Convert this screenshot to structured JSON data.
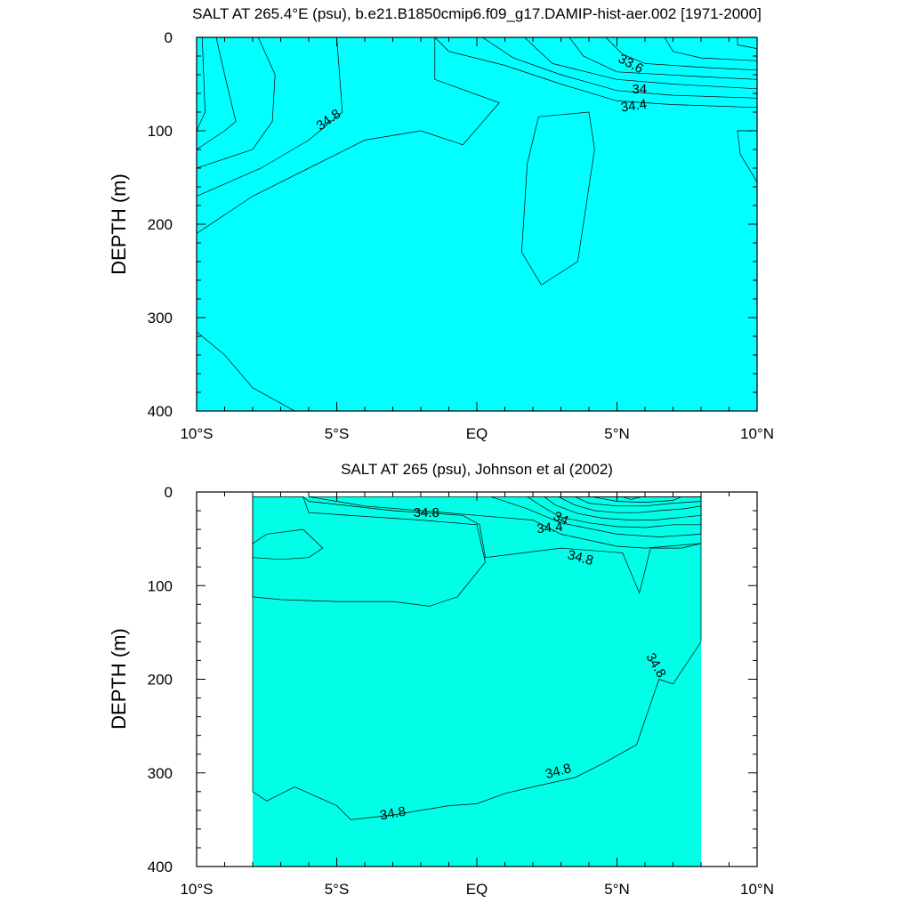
{
  "chart_data": [
    {
      "type": "contour",
      "title": "SALT AT 265.4°E (psu), b.e21.B1850cmip6.f09_g17.DAMIP-hist-aer.002 [1971-2000]",
      "xlabel": "",
      "ylabel": "DEPTH (m)",
      "xlim": [
        -10,
        10
      ],
      "ylim": [
        400,
        0
      ],
      "x_ticks": [
        -10,
        -5,
        0,
        5,
        10
      ],
      "x_tick_labels": [
        "10°S",
        "5°S",
        "EQ",
        "5°N",
        "10°N"
      ],
      "y_ticks": [
        0,
        100,
        200,
        300,
        400
      ],
      "y_tick_labels": [
        "0",
        "100",
        "200",
        "300",
        "400"
      ],
      "background_color": "#00ffff",
      "regions": [
        {
          "level": 34.8,
          "color": "#00ffd2",
          "points": [
            [
              -10,
              0
            ],
            [
              -10,
              210
            ],
            [
              -8,
              170
            ],
            [
              -6,
              140
            ],
            [
              -4,
              110
            ],
            [
              -2,
              100
            ],
            [
              -0.5,
              115
            ],
            [
              0.8,
              70
            ],
            [
              -1.5,
              45
            ],
            [
              -1.5,
              0
            ]
          ]
        },
        {
          "level": 34.8,
          "color": "#00ffd2",
          "points": [
            [
              4.2,
              120
            ],
            [
              3.6,
              240
            ],
            [
              2.3,
              265
            ],
            [
              1.6,
              230
            ],
            [
              1.8,
              135
            ],
            [
              2.2,
              85
            ],
            [
              4,
              80
            ]
          ]
        },
        {
          "level": 34.8,
          "color": "#00ffd2",
          "points": [
            [
              10,
              100
            ],
            [
              9.3,
              100
            ],
            [
              9.4,
              125
            ],
            [
              10,
              155
            ]
          ]
        },
        {
          "level": 34.9,
          "color": "#00ff96",
          "points": [
            [
              -10,
              0
            ],
            [
              -10,
              170
            ],
            [
              -7.7,
              140
            ],
            [
              -6,
              110
            ],
            [
              -4.8,
              80
            ],
            [
              -5,
              0
            ]
          ]
        },
        {
          "level": 35.0,
          "color": "#00ff5a",
          "points": [
            [
              -10,
              0
            ],
            [
              -10,
              140
            ],
            [
              -8,
              120
            ],
            [
              -7.3,
              90
            ],
            [
              -7.2,
              40
            ],
            [
              -7.8,
              0
            ]
          ]
        },
        {
          "level": 35.1,
          "color": "#00ff1e",
          "points": [
            [
              -10,
              0
            ],
            [
              -10,
              120
            ],
            [
              -9,
              100
            ],
            [
              -8.6,
              90
            ],
            [
              -9,
              40
            ],
            [
              -9.3,
              0
            ]
          ]
        },
        {
          "level": 35.2,
          "color": "#96ff00",
          "points": [
            [
              -10,
              0
            ],
            [
              -10,
              100
            ],
            [
              -9.7,
              80
            ],
            [
              -9.8,
              0
            ]
          ]
        },
        {
          "level": 34.6,
          "color": "#00e1ff",
          "points": [
            [
              -1.5,
              0
            ],
            [
              -1,
              15
            ],
            [
              1,
              30
            ],
            [
              3,
              50
            ],
            [
              5,
              68
            ],
            [
              7,
              72
            ],
            [
              10,
              75
            ],
            [
              10,
              0
            ]
          ]
        },
        {
          "level": 34.6,
          "color": "#00e1ff",
          "points": [
            [
              -10,
              315
            ],
            [
              -9,
              340
            ],
            [
              -8,
              375
            ],
            [
              -6.5,
              400
            ],
            [
              -10,
              400
            ]
          ]
        },
        {
          "level": 34.4,
          "color": "#00beff",
          "points": [
            [
              0.2,
              0
            ],
            [
              1.3,
              22
            ],
            [
              3,
              40
            ],
            [
              5,
              57
            ],
            [
              7,
              62
            ],
            [
              10,
              65
            ],
            [
              10,
              0
            ]
          ]
        },
        {
          "level": 34.2,
          "color": "#0096ff",
          "points": [
            [
              1.7,
              0
            ],
            [
              2.7,
              28
            ],
            [
              5,
              45
            ],
            [
              7,
              50
            ],
            [
              10,
              55
            ],
            [
              10,
              0
            ]
          ]
        },
        {
          "level": 34.0,
          "color": "#0064ff",
          "points": [
            [
              3.3,
              0
            ],
            [
              3.8,
              20
            ],
            [
              5,
              37
            ],
            [
              8,
              42
            ],
            [
              10,
              45
            ],
            [
              10,
              0
            ]
          ]
        },
        {
          "level": 33.8,
          "color": "#003cff",
          "points": [
            [
              4.6,
              0
            ],
            [
              5.2,
              18
            ],
            [
              6,
              28
            ],
            [
              8,
              32
            ],
            [
              10,
              35
            ],
            [
              10,
              0
            ]
          ]
        },
        {
          "level": 33.6,
          "color": "#0000f0",
          "points": [
            [
              6.7,
              0
            ],
            [
              7,
              15
            ],
            [
              8,
              22
            ],
            [
              10,
              25
            ],
            [
              10,
              0
            ]
          ]
        },
        {
          "level": 33.4,
          "color": "#6400c8",
          "points": [
            [
              9.3,
              0
            ],
            [
              9.3,
              8
            ],
            [
              10,
              12
            ],
            [
              10,
              0
            ]
          ]
        }
      ],
      "contour_labels": [
        {
          "text": "33.6",
          "x": 5.5,
          "y": 28,
          "angle": 28
        },
        {
          "text": "34",
          "x": 5.8,
          "y": 55,
          "angle": 0
        },
        {
          "text": "34.4",
          "x": 5.6,
          "y": 73,
          "angle": -8
        },
        {
          "text": "34.8",
          "x": -5.3,
          "y": 88,
          "angle": -35
        }
      ]
    },
    {
      "type": "contour",
      "title": "SALT AT 265 (psu), Johnson et al (2002)",
      "xlabel": "",
      "ylabel": "DEPTH (m)",
      "xlim": [
        -10,
        10
      ],
      "ylim": [
        400,
        0
      ],
      "x_ticks": [
        -10,
        -5,
        0,
        5,
        10
      ],
      "x_tick_labels": [
        "10°S",
        "5°S",
        "EQ",
        "5°N",
        "10°N"
      ],
      "y_ticks": [
        0,
        100,
        200,
        300,
        400
      ],
      "y_tick_labels": [
        "0",
        "100",
        "200",
        "300",
        "400"
      ],
      "data_extent": {
        "x": [
          -8,
          8
        ],
        "y": [
          5,
          400
        ]
      },
      "background_color": "#00ffe6",
      "regions": [
        {
          "level": 34.9,
          "color": "#00ffb4",
          "points": [
            [
              -8,
              5
            ],
            [
              -8,
              320
            ],
            [
              -7.5,
              330
            ],
            [
              -6.5,
              315
            ],
            [
              -5,
              335
            ],
            [
              -4.5,
              350
            ],
            [
              -3,
              345
            ],
            [
              -1,
              335
            ],
            [
              0,
              333
            ],
            [
              1,
              322
            ],
            [
              2,
              315
            ],
            [
              3.5,
              305
            ],
            [
              4.5,
              290
            ],
            [
              5.7,
              270
            ],
            [
              6.5,
              200
            ],
            [
              7,
              205
            ],
            [
              8,
              160
            ],
            [
              8,
              55
            ],
            [
              7.3,
              60
            ],
            [
              6.2,
              60
            ],
            [
              5.8,
              108
            ],
            [
              5.2,
              65
            ],
            [
              3,
              60
            ],
            [
              0.3,
              70
            ],
            [
              0.1,
              35
            ],
            [
              -0.5,
              25
            ],
            [
              -3,
              20
            ],
            [
              -6,
              10
            ],
            [
              -6.2,
              5
            ]
          ]
        },
        {
          "level": 35.0,
          "color": "#00ff5a",
          "points": [
            [
              -8,
              5
            ],
            [
              -8,
              112
            ],
            [
              -7,
              115
            ],
            [
              -5,
              117
            ],
            [
              -3,
              117
            ],
            [
              -1.7,
              122
            ],
            [
              -0.7,
              112
            ],
            [
              0.3,
              75
            ],
            [
              0,
              35
            ],
            [
              -2,
              30
            ],
            [
              -6,
              22
            ],
            [
              -6.2,
              5
            ]
          ]
        },
        {
          "level": 35.1,
          "color": "#00ff1e",
          "points": [
            [
              -8,
              55
            ],
            [
              -8,
              70
            ],
            [
              -7,
              72
            ],
            [
              -6,
              70
            ],
            [
              -5.5,
              60
            ],
            [
              -6.2,
              40
            ],
            [
              -7.5,
              45
            ]
          ]
        },
        {
          "level": 34.8,
          "color": "#00ffff",
          "points": [
            [
              -6,
              5
            ],
            [
              -4,
              15
            ],
            [
              -2,
              20
            ],
            [
              0,
              25
            ],
            [
              2,
              30
            ],
            [
              3,
              45
            ],
            [
              5,
              58
            ],
            [
              6,
              60
            ],
            [
              8,
              55
            ],
            [
              8,
              5
            ]
          ]
        },
        {
          "level": 34.6,
          "color": "#00e1ff",
          "points": [
            [
              0.5,
              5
            ],
            [
              1.8,
              18
            ],
            [
              3,
              33
            ],
            [
              5,
              45
            ],
            [
              6.5,
              48
            ],
            [
              8,
              45
            ],
            [
              8,
              5
            ]
          ]
        },
        {
          "level": 34.4,
          "color": "#00beff",
          "points": [
            [
              1.8,
              5
            ],
            [
              2.3,
              15
            ],
            [
              3,
              27
            ],
            [
              4,
              33
            ],
            [
              5,
              37
            ],
            [
              6,
              38
            ],
            [
              7,
              35
            ],
            [
              8,
              35
            ],
            [
              8,
              5
            ]
          ]
        },
        {
          "level": 34.2,
          "color": "#0096ff",
          "points": [
            [
              2.4,
              5
            ],
            [
              2.8,
              14
            ],
            [
              3.6,
              23
            ],
            [
              4.5,
              28
            ],
            [
              5.5,
              30
            ],
            [
              6.3,
              30
            ],
            [
              7,
              28
            ],
            [
              8,
              25
            ],
            [
              8,
              5
            ]
          ]
        },
        {
          "level": 34.0,
          "color": "#0064ff",
          "points": [
            [
              2.9,
              5
            ],
            [
              3.5,
              14
            ],
            [
              4.2,
              20
            ],
            [
              5,
              22
            ],
            [
              5.8,
              22
            ],
            [
              6.5,
              20
            ],
            [
              7.4,
              18
            ],
            [
              8,
              15
            ],
            [
              8,
              5
            ]
          ]
        },
        {
          "level": 33.8,
          "color": "#003cff",
          "points": [
            [
              3.5,
              5
            ],
            [
              4,
              12
            ],
            [
              5,
              15
            ],
            [
              6,
              15
            ],
            [
              7,
              12
            ],
            [
              8,
              10
            ],
            [
              8,
              5
            ]
          ]
        },
        {
          "level": 33.6,
          "color": "#0000f0",
          "points": [
            [
              4.1,
              5
            ],
            [
              5,
              10
            ],
            [
              6,
              11
            ],
            [
              7,
              9
            ],
            [
              7.3,
              5
            ]
          ]
        },
        {
          "level": 33.4,
          "color": "#c800e6",
          "points": [
            [
              5.2,
              5
            ],
            [
              5.5,
              8
            ],
            [
              5.9,
              5
            ]
          ]
        }
      ],
      "contour_labels": [
        {
          "text": "34.8",
          "x": -1.8,
          "y": 22,
          "angle": 0
        },
        {
          "text": "34",
          "x": 3.0,
          "y": 28,
          "angle": 25
        },
        {
          "text": "34.4",
          "x": 2.6,
          "y": 38,
          "angle": -5
        },
        {
          "text": "34.8",
          "x": 3.7,
          "y": 70,
          "angle": 15
        },
        {
          "text": "34.8",
          "x": 6.4,
          "y": 185,
          "angle": 60
        },
        {
          "text": "34.8",
          "x": 2.9,
          "y": 298,
          "angle": -15
        },
        {
          "text": "34.8",
          "x": -3.0,
          "y": 343,
          "angle": -10
        }
      ]
    }
  ]
}
